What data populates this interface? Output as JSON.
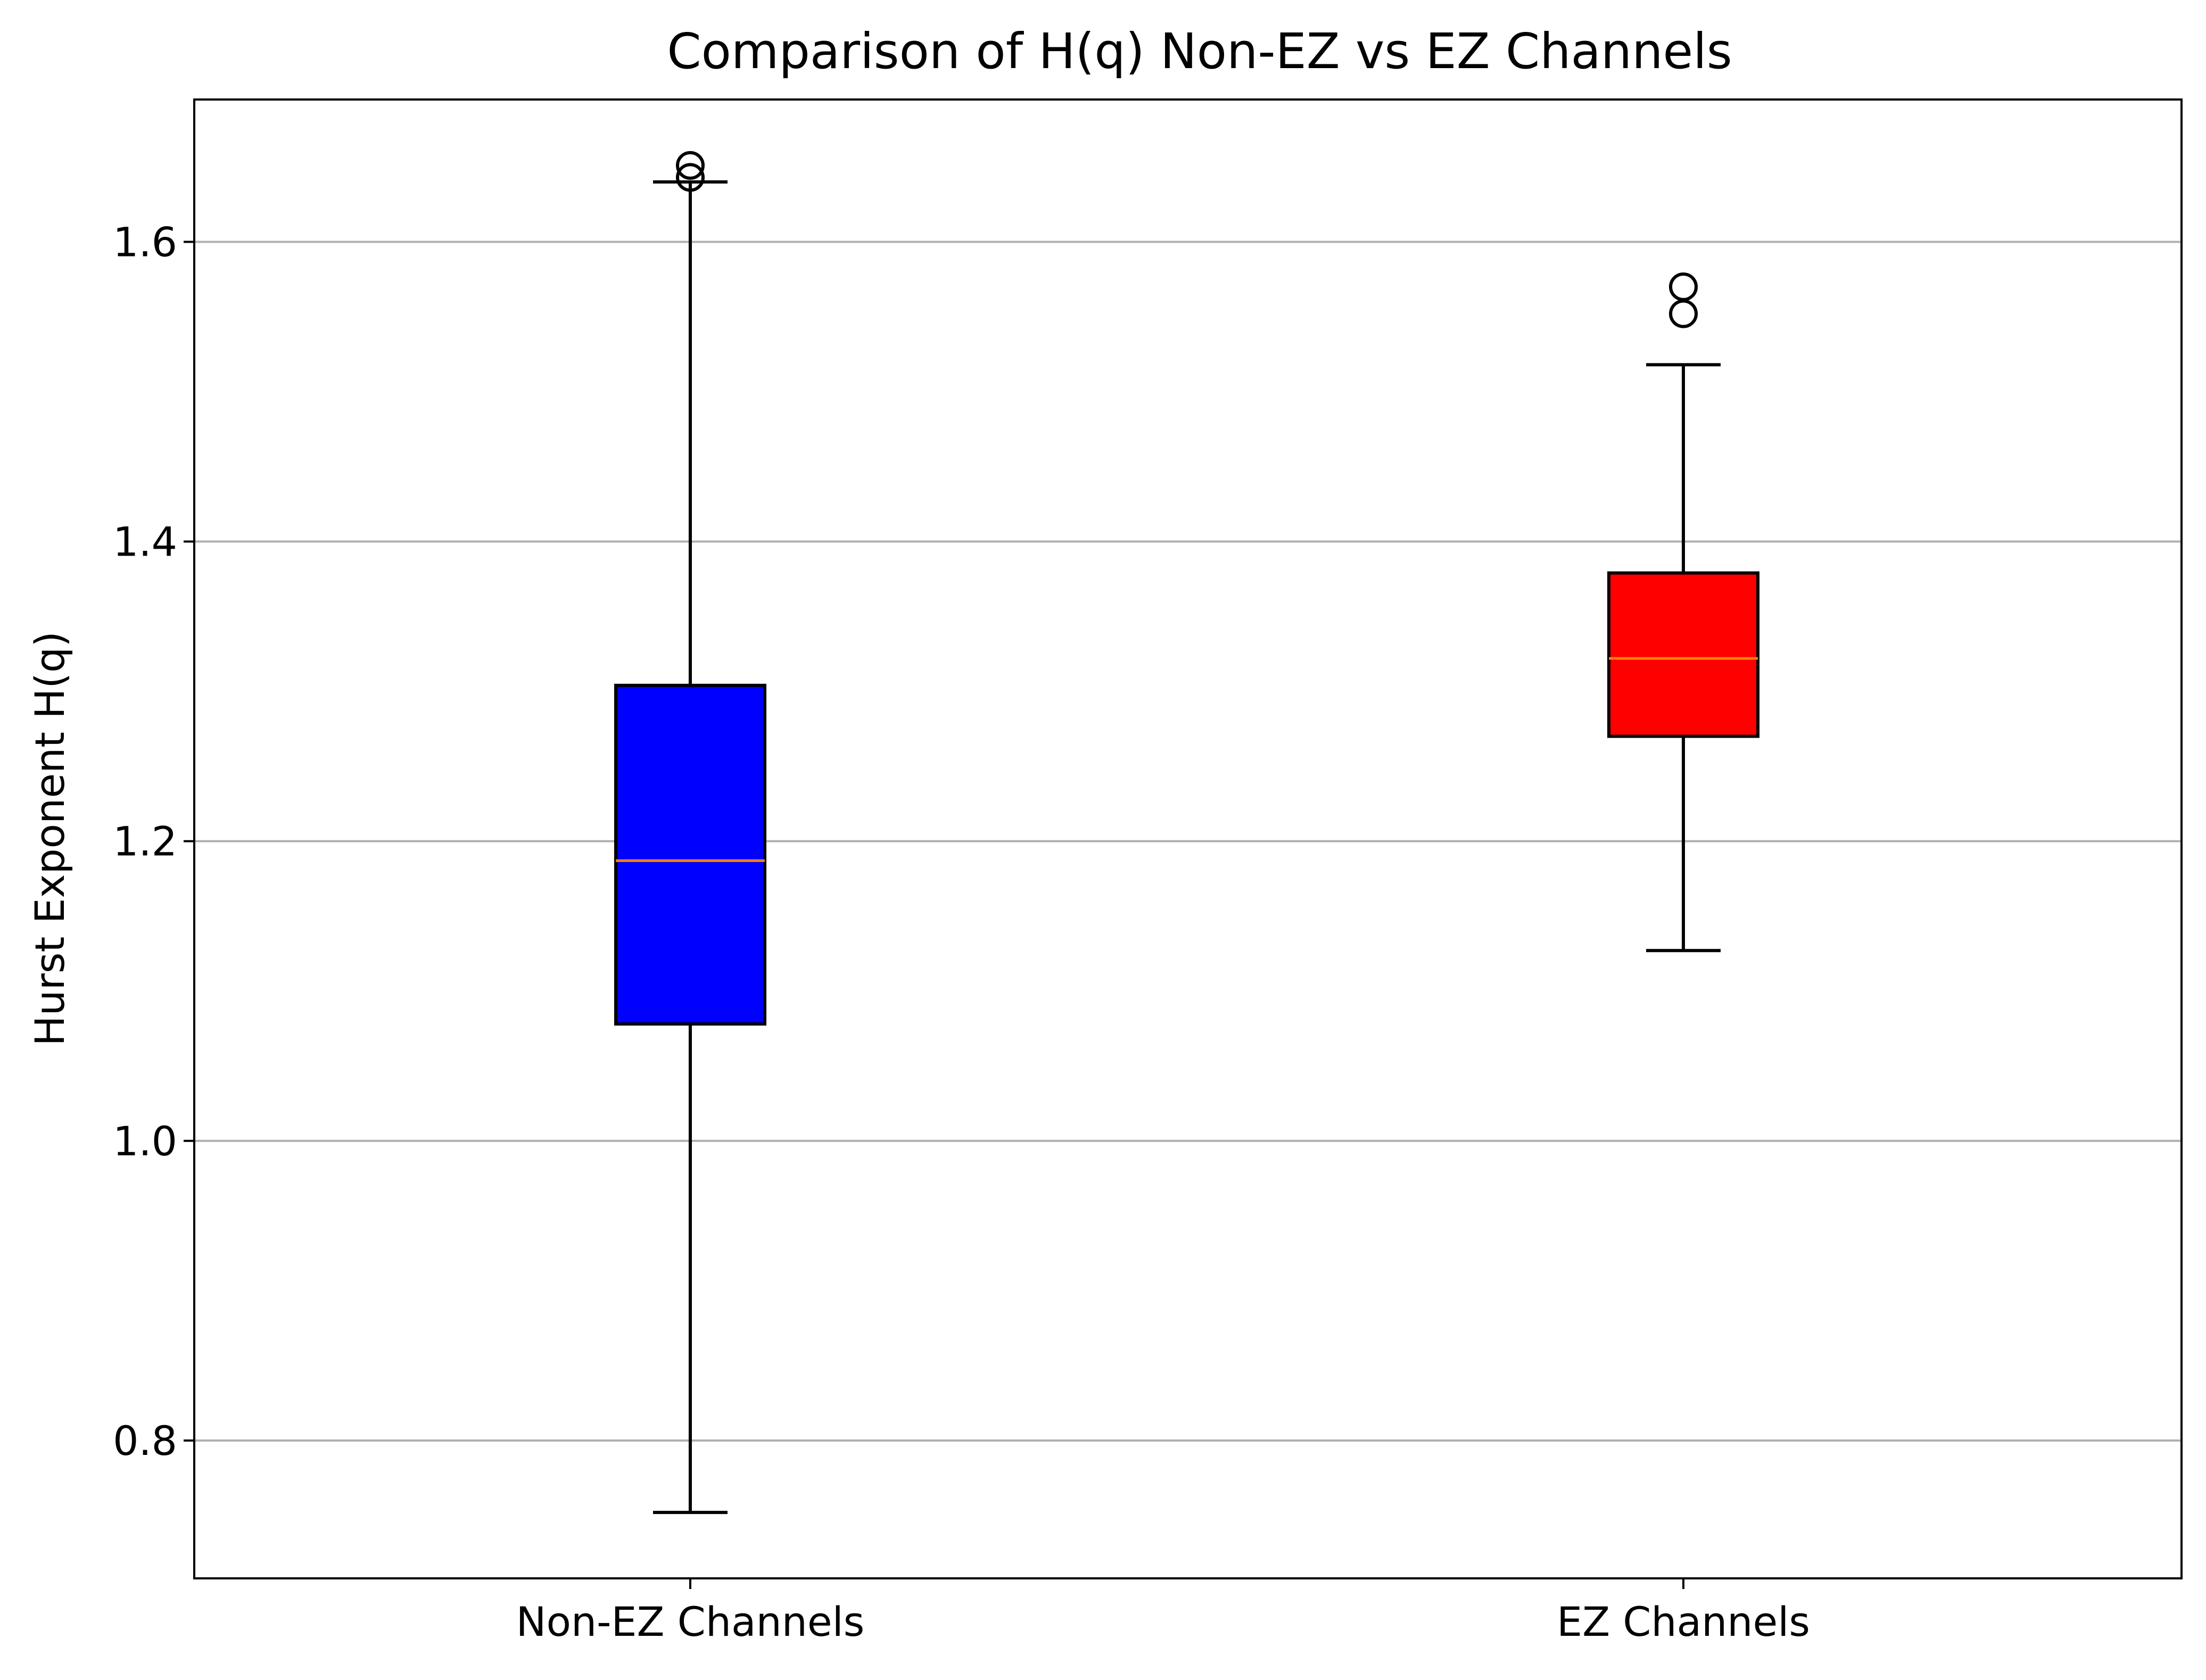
{
  "chart_data": {
    "type": "box",
    "title": "Comparison of H(q)  Non-EZ vs EZ Channels",
    "xlabel": "",
    "ylabel": "Hurst Exponent H(q)",
    "ylim": [
      0.708,
      1.695
    ],
    "yticks": [
      0.8,
      1.0,
      1.2,
      1.4,
      1.6
    ],
    "ytick_labels": [
      "0.8",
      "1.0",
      "1.2",
      "1.4",
      "1.6"
    ],
    "grid": "y",
    "categories": [
      "Non-EZ Channels",
      "EZ Channels"
    ],
    "boxes": [
      {
        "name": "Non-EZ Channels",
        "whisker_low": 0.752,
        "q1": 1.078,
        "median": 1.187,
        "q3": 1.304,
        "whisker_high": 1.64,
        "outliers": [
          1.643,
          1.651
        ],
        "color": "#0000ff"
      },
      {
        "name": "EZ Channels",
        "whisker_low": 1.127,
        "q1": 1.27,
        "median": 1.322,
        "q3": 1.379,
        "whisker_high": 1.518,
        "outliers": [
          1.552,
          1.57
        ],
        "color": "#ff0000"
      }
    ],
    "median_color": "#ff7f0e",
    "grid_color": "#b0b0b0"
  }
}
